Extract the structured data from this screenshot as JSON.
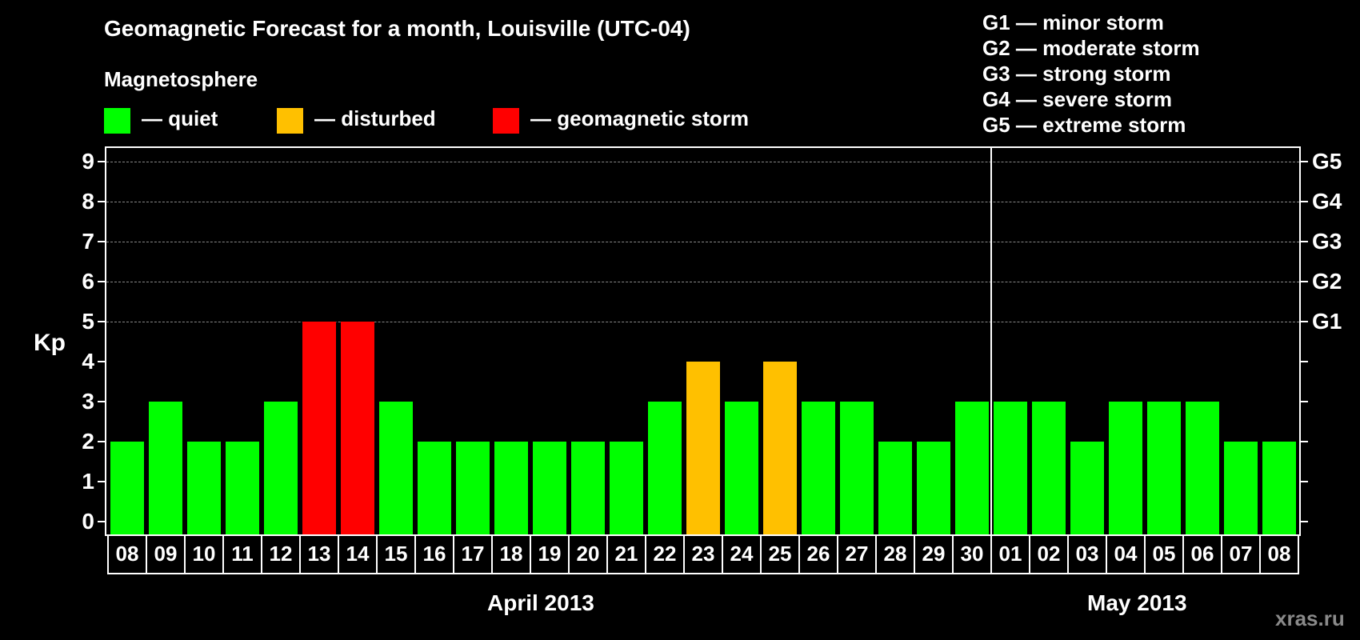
{
  "header": {
    "title": "Geomagnetic Forecast for a month, Louisville (UTC-04)",
    "subtitle": "Magnetosphere"
  },
  "legend": [
    {
      "label": "— quiet",
      "color": "#00FF00"
    },
    {
      "label": "— disturbed",
      "color": "#FFC000"
    },
    {
      "label": "— geomagnetic storm",
      "color": "#FF0000"
    }
  ],
  "g_legend": [
    "G1 — minor storm",
    "G2 — moderate storm",
    "G3 — strong storm",
    "G4 — severe storm",
    "G5 — extreme storm"
  ],
  "axis": {
    "ylabel": "Kp",
    "yticks": [
      "0",
      "1",
      "2",
      "3",
      "4",
      "5",
      "6",
      "7",
      "8",
      "9"
    ],
    "right_labels": {
      "5": "G1",
      "6": "G2",
      "7": "G3",
      "8": "G4",
      "9": "G5"
    }
  },
  "months": [
    "April 2013",
    "May 2013"
  ],
  "watermark": "xras.ru",
  "colors": {
    "quiet": "#00FF00",
    "disturbed": "#FFC000",
    "storm": "#FF0000",
    "background": "#000000",
    "grid": "#8a8a8a"
  },
  "chart_data": {
    "type": "bar",
    "title": "Geomagnetic Forecast for a month, Louisville (UTC-04)",
    "xlabel": "April 2013 / May 2013",
    "ylabel": "Kp",
    "ylim": [
      0,
      9
    ],
    "grid": "dashed horizontal at Kp 5–9",
    "legend_position": "top",
    "categories": [
      "08",
      "09",
      "10",
      "11",
      "12",
      "13",
      "14",
      "15",
      "16",
      "17",
      "18",
      "19",
      "20",
      "21",
      "22",
      "23",
      "24",
      "25",
      "26",
      "27",
      "28",
      "29",
      "30",
      "01",
      "02",
      "03",
      "04",
      "05",
      "06",
      "07",
      "08"
    ],
    "values": [
      2,
      3,
      2,
      2,
      3,
      5,
      5,
      3,
      2,
      2,
      2,
      2,
      2,
      2,
      3,
      4,
      3,
      4,
      3,
      3,
      2,
      2,
      3,
      3,
      3,
      2,
      3,
      3,
      3,
      2,
      2
    ],
    "status": [
      "quiet",
      "quiet",
      "quiet",
      "quiet",
      "quiet",
      "storm",
      "storm",
      "quiet",
      "quiet",
      "quiet",
      "quiet",
      "quiet",
      "quiet",
      "quiet",
      "quiet",
      "disturbed",
      "quiet",
      "disturbed",
      "quiet",
      "quiet",
      "quiet",
      "quiet",
      "quiet",
      "quiet",
      "quiet",
      "quiet",
      "quiet",
      "quiet",
      "quiet",
      "quiet",
      "quiet"
    ],
    "month_split_index": 23,
    "secondary_axis": {
      "5": "G1",
      "6": "G2",
      "7": "G3",
      "8": "G4",
      "9": "G5"
    }
  }
}
